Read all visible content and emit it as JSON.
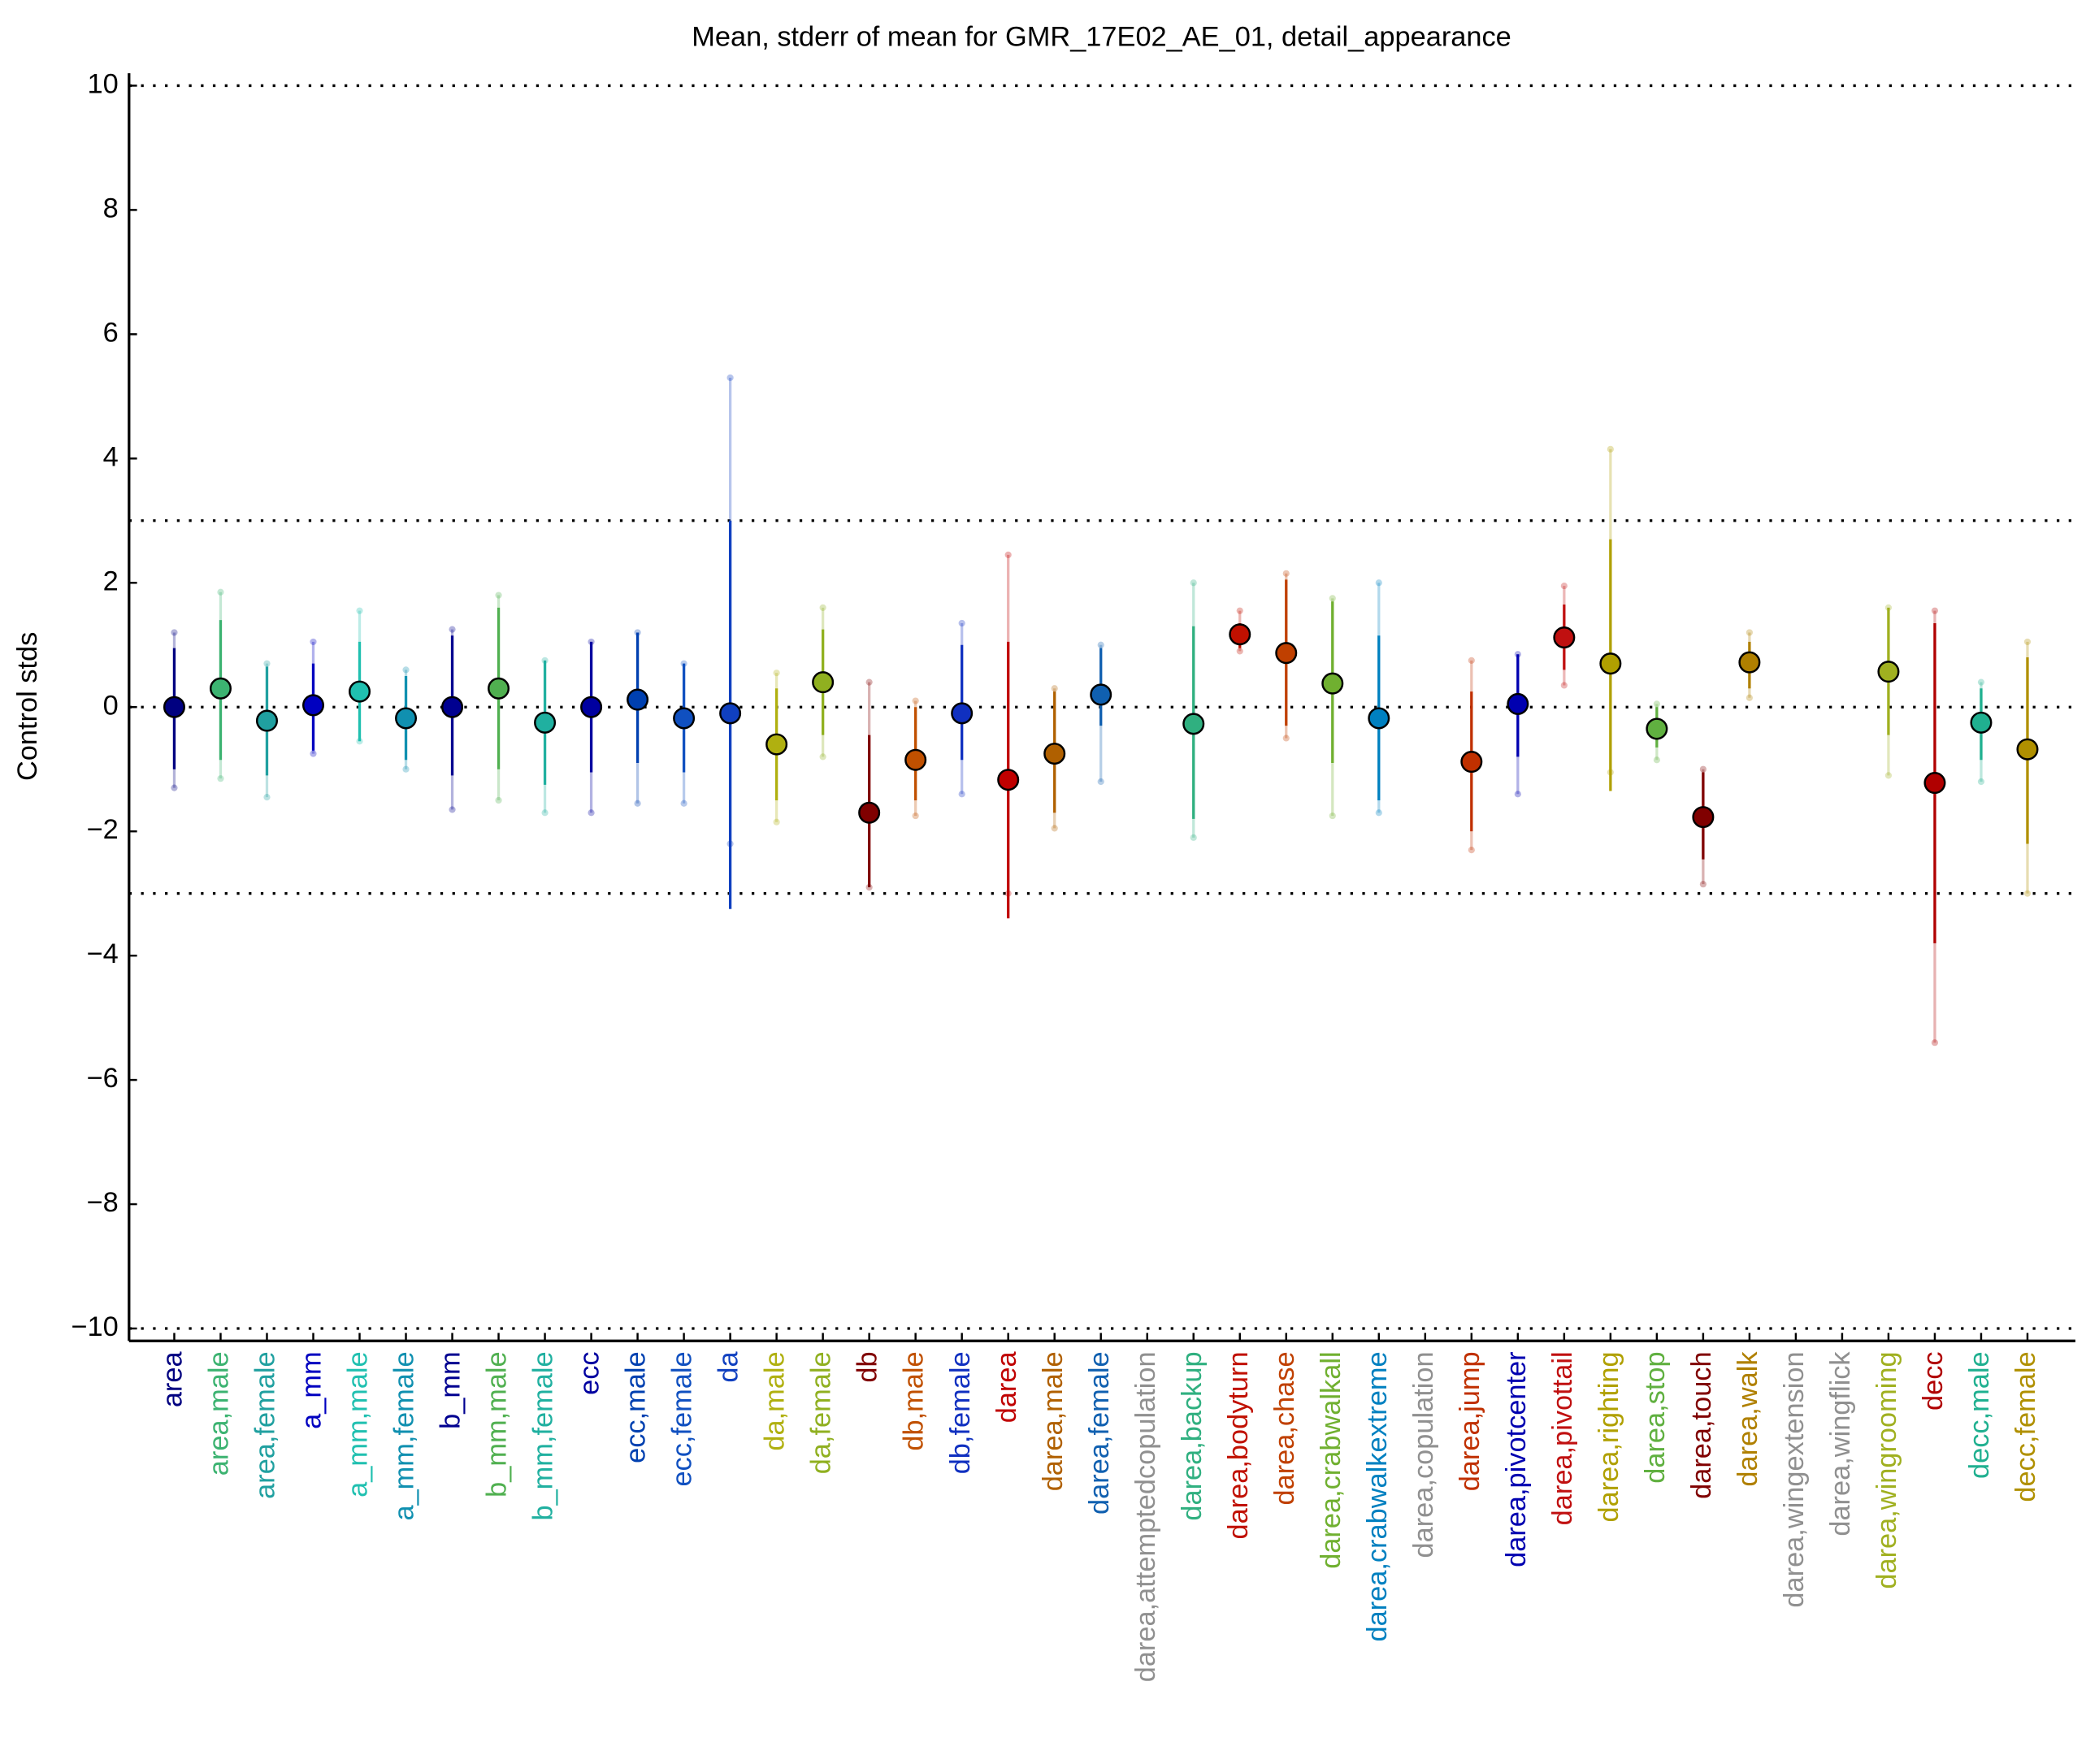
{
  "chart_data": {
    "type": "errorbar",
    "title": "Mean, stderr of mean for GMR_17E02_AE_01, detail_appearance",
    "ylabel": "Control stds",
    "categories": [
      "area",
      "area,male",
      "area,female",
      "a_mm",
      "a_mm,male",
      "a_mm,female",
      "b_mm",
      "b_mm,male",
      "b_mm,female",
      "ecc",
      "ecc,male",
      "ecc,female",
      "da",
      "da,male",
      "da,female",
      "db",
      "db,male",
      "db,female",
      "darea",
      "darea,male",
      "darea,female",
      "darea,attemptedcopulation",
      "darea,backup",
      "darea,bodyturn",
      "darea,chase",
      "darea,crabwalkall",
      "darea,crabwalkextreme",
      "darea,copulation",
      "darea,jump",
      "darea,pivotcenter",
      "darea,pivottail",
      "darea,righting",
      "darea,stop",
      "darea,touch",
      "darea,walk",
      "darea,wingextension",
      "darea,wingflick",
      "darea,wingrooming",
      "decc",
      "decc,male",
      "decc,female"
    ],
    "colors": [
      "#000080",
      "#3cb371",
      "#20a0a0",
      "#0000c0",
      "#20c0b0",
      "#1090b0",
      "#000090",
      "#50b050",
      "#20b0a0",
      "#0000a0",
      "#0040b0",
      "#1050c0",
      "#1040c0",
      "#b0b010",
      "#90b020",
      "#800000",
      "#c05000",
      "#1030c0",
      "#c00000",
      "#b06000",
      "#1060b0",
      "#909090",
      "#30b080",
      "#c01000",
      "#c04000",
      "#70b030",
      "#0080c0",
      "#909090",
      "#c03000",
      "#0000b0",
      "#c01010",
      "#b0a000",
      "#60b040",
      "#800000",
      "#b08000",
      "#909090",
      "#909090",
      "#a0b020",
      "#b00000",
      "#20b090",
      "#b09000"
    ],
    "values": [
      0,
      0.3,
      -0.22,
      0.03,
      0.25,
      -0.18,
      0,
      0.3,
      -0.25,
      0,
      0.12,
      -0.18,
      -0.1,
      -0.6,
      0.4,
      -1.7,
      -0.85,
      -0.1,
      -1.17,
      -0.75,
      0.2,
      null,
      -0.27,
      1.17,
      0.87,
      0.38,
      -0.18,
      null,
      -0.88,
      0.05,
      1.12,
      0.7,
      -0.35,
      -1.77,
      0.72,
      null,
      null,
      0.57,
      -1.22,
      -0.25,
      -0.68
    ],
    "ci_low": [
      -1.0,
      -0.85,
      -1.1,
      -0.7,
      -0.55,
      -0.85,
      -1.1,
      -1.0,
      -1.25,
      -1.05,
      -0.9,
      -1.05,
      -3.25,
      -1.5,
      -0.45,
      -2.9,
      -1.5,
      -0.85,
      -3.4,
      -1.7,
      -0.3,
      null,
      -1.8,
      0.95,
      -0.3,
      -0.9,
      -1.5,
      null,
      -2.0,
      -0.8,
      0.6,
      -1.35,
      -0.65,
      -2.45,
      0.3,
      null,
      null,
      -0.45,
      -3.8,
      -0.85,
      -2.2
    ],
    "ci_high": [
      0.95,
      1.4,
      0.65,
      0.7,
      1.05,
      0.5,
      1.15,
      1.6,
      0.75,
      1.05,
      1.2,
      0.7,
      3.0,
      0.3,
      1.25,
      -0.45,
      0,
      1.0,
      1.05,
      0.25,
      0.95,
      null,
      1.3,
      1.35,
      2.05,
      1.7,
      1.15,
      null,
      0.25,
      0.85,
      1.65,
      2.7,
      0,
      -1.05,
      1.05,
      null,
      null,
      1.6,
      1.35,
      0.3,
      0.8
    ],
    "range_low": [
      -1.3,
      -1.15,
      -1.45,
      -0.75,
      -0.55,
      -1.0,
      -1.65,
      -1.5,
      -1.7,
      -1.7,
      -1.55,
      -1.55,
      -2.2,
      -1.85,
      -0.8,
      -2.9,
      -1.75,
      -1.4,
      -3.0,
      -1.95,
      -1.2,
      null,
      -2.1,
      0.9,
      -0.5,
      -1.75,
      -1.7,
      null,
      -2.3,
      -1.4,
      0.35,
      -1.05,
      -0.85,
      -2.85,
      0.15,
      null,
      null,
      -1.1,
      -5.4,
      -1.2,
      -3.0
    ],
    "range_high": [
      1.2,
      1.85,
      0.7,
      1.05,
      1.55,
      0.6,
      1.25,
      1.8,
      0.75,
      1.05,
      1.2,
      0.7,
      5.3,
      0.55,
      1.6,
      0.4,
      0.1,
      1.35,
      2.45,
      0.3,
      1.0,
      null,
      2.0,
      1.55,
      2.15,
      1.75,
      2.0,
      null,
      0.75,
      0.85,
      1.95,
      4.15,
      0.05,
      -1.0,
      1.2,
      null,
      null,
      1.6,
      1.55,
      0.4,
      1.05
    ],
    "ylim": [
      -10.2,
      10.2
    ],
    "yticks": [
      {
        "value": -10,
        "label": "−10"
      },
      {
        "value": -8,
        "label": "−8"
      },
      {
        "value": -6,
        "label": "−6"
      },
      {
        "value": -4,
        "label": "−4"
      },
      {
        "value": -2,
        "label": "−2"
      },
      0,
      2,
      4,
      6,
      8,
      10
    ],
    "hlines": [
      10,
      3,
      0,
      -3,
      -10
    ]
  }
}
